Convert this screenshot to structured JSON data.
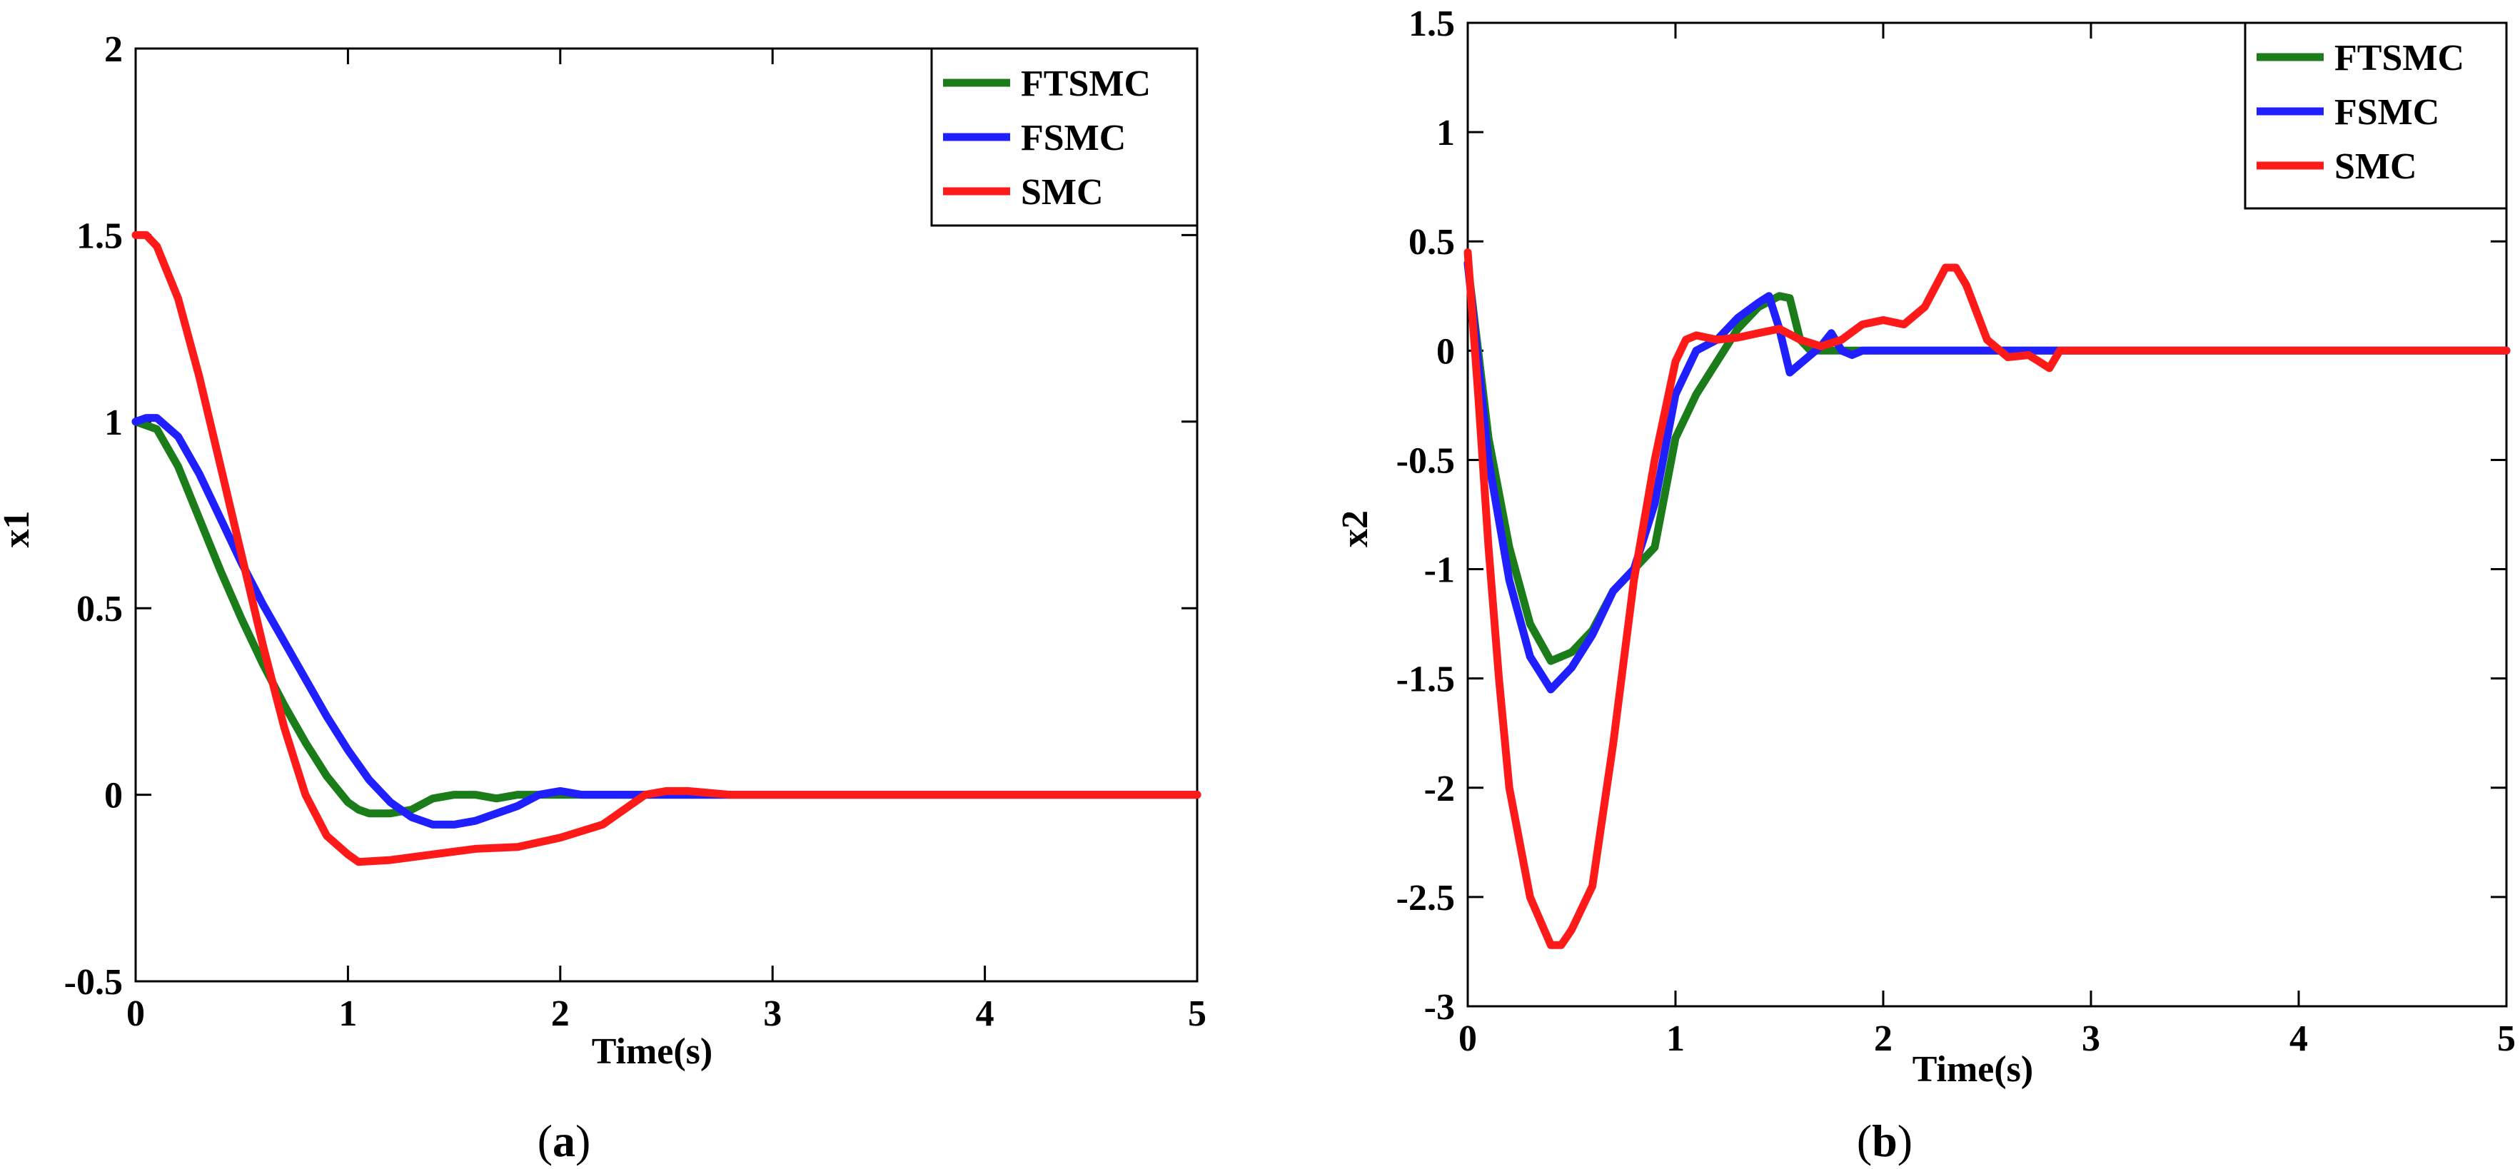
{
  "chart_data": [
    {
      "type": "line",
      "panel_label": "(a)",
      "panel_letter": "a",
      "xlabel": "Time(s)",
      "ylabel": "x1",
      "xlim": [
        0,
        5
      ],
      "ylim": [
        -0.5,
        2
      ],
      "xticks": [
        0,
        1,
        2,
        3,
        4,
        5
      ],
      "yticks": [
        -0.5,
        0,
        0.5,
        1,
        1.5,
        2
      ],
      "xtick_labels": [
        "0",
        "1",
        "2",
        "3",
        "4",
        "5"
      ],
      "ytick_labels": [
        "-0.5",
        "0",
        "0.5",
        "1",
        "1.5",
        "2"
      ],
      "grid": false,
      "legend_position": "top-right",
      "series": [
        {
          "name": "FTSMC",
          "color": "#1a7d1a",
          "points": [
            [
              0,
              1.0
            ],
            [
              0.1,
              0.98
            ],
            [
              0.2,
              0.88
            ],
            [
              0.3,
              0.74
            ],
            [
              0.4,
              0.6
            ],
            [
              0.5,
              0.47
            ],
            [
              0.6,
              0.35
            ],
            [
              0.7,
              0.24
            ],
            [
              0.8,
              0.14
            ],
            [
              0.9,
              0.05
            ],
            [
              1.0,
              -0.02
            ],
            [
              1.05,
              -0.04
            ],
            [
              1.1,
              -0.05
            ],
            [
              1.2,
              -0.05
            ],
            [
              1.3,
              -0.04
            ],
            [
              1.4,
              -0.01
            ],
            [
              1.5,
              0.0
            ],
            [
              1.6,
              0.0
            ],
            [
              1.7,
              -0.01
            ],
            [
              1.8,
              0.0
            ],
            [
              2.0,
              0.0
            ],
            [
              5.0,
              0.0
            ]
          ]
        },
        {
          "name": "FSMC",
          "color": "#1f1fff",
          "points": [
            [
              0,
              1.0
            ],
            [
              0.05,
              1.01
            ],
            [
              0.1,
              1.01
            ],
            [
              0.2,
              0.96
            ],
            [
              0.3,
              0.86
            ],
            [
              0.4,
              0.74
            ],
            [
              0.5,
              0.62
            ],
            [
              0.6,
              0.51
            ],
            [
              0.7,
              0.41
            ],
            [
              0.8,
              0.31
            ],
            [
              0.9,
              0.21
            ],
            [
              1.0,
              0.12
            ],
            [
              1.1,
              0.04
            ],
            [
              1.2,
              -0.02
            ],
            [
              1.3,
              -0.06
            ],
            [
              1.4,
              -0.08
            ],
            [
              1.5,
              -0.08
            ],
            [
              1.6,
              -0.07
            ],
            [
              1.7,
              -0.05
            ],
            [
              1.8,
              -0.03
            ],
            [
              1.9,
              0.0
            ],
            [
              2.0,
              0.01
            ],
            [
              2.1,
              0.0
            ],
            [
              2.2,
              0.0
            ],
            [
              5.0,
              0.0
            ]
          ]
        },
        {
          "name": "SMC",
          "color": "#ff1a1a",
          "points": [
            [
              0,
              1.5
            ],
            [
              0.05,
              1.5
            ],
            [
              0.1,
              1.47
            ],
            [
              0.2,
              1.33
            ],
            [
              0.3,
              1.12
            ],
            [
              0.4,
              0.88
            ],
            [
              0.5,
              0.64
            ],
            [
              0.6,
              0.4
            ],
            [
              0.7,
              0.18
            ],
            [
              0.8,
              0.0
            ],
            [
              0.9,
              -0.11
            ],
            [
              1.0,
              -0.16
            ],
            [
              1.05,
              -0.18
            ],
            [
              1.2,
              -0.175
            ],
            [
              1.4,
              -0.16
            ],
            [
              1.6,
              -0.145
            ],
            [
              1.8,
              -0.14
            ],
            [
              2.0,
              -0.115
            ],
            [
              2.2,
              -0.08
            ],
            [
              2.3,
              -0.04
            ],
            [
              2.4,
              0.0
            ],
            [
              2.5,
              0.01
            ],
            [
              2.6,
              0.01
            ],
            [
              2.7,
              0.005
            ],
            [
              2.8,
              0.0
            ],
            [
              5.0,
              0.0
            ]
          ]
        }
      ]
    },
    {
      "type": "line",
      "panel_label": "(b)",
      "panel_letter": "b",
      "xlabel": "Time(s)",
      "ylabel": "x2",
      "xlim": [
        0,
        5
      ],
      "ylim": [
        -3,
        1.5
      ],
      "xticks": [
        0,
        1,
        2,
        3,
        4,
        5
      ],
      "yticks": [
        -3,
        -2.5,
        -2,
        -1.5,
        -1,
        -0.5,
        0,
        0.5,
        1,
        1.5
      ],
      "xtick_labels": [
        "0",
        "1",
        "2",
        "3",
        "4",
        "5"
      ],
      "ytick_labels": [
        "-3",
        "-2.5",
        "-2",
        "-1.5",
        "-1",
        "-0.5",
        "0",
        "0.5",
        "1",
        "1.5"
      ],
      "grid": false,
      "legend_position": "top-right",
      "series": [
        {
          "name": "FTSMC",
          "color": "#1a7d1a",
          "points": [
            [
              0,
              0.4
            ],
            [
              0.05,
              0.0
            ],
            [
              0.1,
              -0.4
            ],
            [
              0.2,
              -0.9
            ],
            [
              0.3,
              -1.25
            ],
            [
              0.4,
              -1.42
            ],
            [
              0.5,
              -1.38
            ],
            [
              0.6,
              -1.28
            ],
            [
              0.7,
              -1.1
            ],
            [
              0.8,
              -1.0
            ],
            [
              0.9,
              -0.9
            ],
            [
              1.0,
              -0.4
            ],
            [
              1.1,
              -0.2
            ],
            [
              1.2,
              -0.05
            ],
            [
              1.3,
              0.1
            ],
            [
              1.4,
              0.2
            ],
            [
              1.5,
              0.25
            ],
            [
              1.55,
              0.24
            ],
            [
              1.6,
              0.05
            ],
            [
              1.65,
              0.0
            ],
            [
              1.8,
              0.0
            ],
            [
              5.0,
              0.0
            ]
          ]
        },
        {
          "name": "FSMC",
          "color": "#1f1fff",
          "points": [
            [
              0,
              0.4
            ],
            [
              0.05,
              -0.05
            ],
            [
              0.1,
              -0.5
            ],
            [
              0.2,
              -1.05
            ],
            [
              0.3,
              -1.4
            ],
            [
              0.4,
              -1.55
            ],
            [
              0.5,
              -1.45
            ],
            [
              0.6,
              -1.3
            ],
            [
              0.7,
              -1.1
            ],
            [
              0.8,
              -1.0
            ],
            [
              0.9,
              -0.7
            ],
            [
              1.0,
              -0.2
            ],
            [
              1.1,
              0.0
            ],
            [
              1.2,
              0.05
            ],
            [
              1.3,
              0.15
            ],
            [
              1.4,
              0.22
            ],
            [
              1.45,
              0.25
            ],
            [
              1.5,
              0.1
            ],
            [
              1.55,
              -0.1
            ],
            [
              1.6,
              -0.06
            ],
            [
              1.7,
              0.02
            ],
            [
              1.75,
              0.08
            ],
            [
              1.8,
              0.0
            ],
            [
              1.85,
              -0.02
            ],
            [
              1.9,
              0.0
            ],
            [
              5.0,
              0.0
            ]
          ]
        },
        {
          "name": "SMC",
          "color": "#ff1a1a",
          "points": [
            [
              0,
              0.45
            ],
            [
              0.05,
              -0.2
            ],
            [
              0.1,
              -0.9
            ],
            [
              0.15,
              -1.5
            ],
            [
              0.2,
              -2.0
            ],
            [
              0.3,
              -2.5
            ],
            [
              0.4,
              -2.72
            ],
            [
              0.45,
              -2.72
            ],
            [
              0.5,
              -2.65
            ],
            [
              0.6,
              -2.45
            ],
            [
              0.7,
              -1.8
            ],
            [
              0.8,
              -1.05
            ],
            [
              0.9,
              -0.5
            ],
            [
              1.0,
              -0.05
            ],
            [
              1.05,
              0.05
            ],
            [
              1.1,
              0.07
            ],
            [
              1.2,
              0.05
            ],
            [
              1.3,
              0.06
            ],
            [
              1.4,
              0.08
            ],
            [
              1.5,
              0.1
            ],
            [
              1.6,
              0.05
            ],
            [
              1.7,
              0.02
            ],
            [
              1.8,
              0.05
            ],
            [
              1.9,
              0.12
            ],
            [
              2.0,
              0.14
            ],
            [
              2.1,
              0.12
            ],
            [
              2.2,
              0.2
            ],
            [
              2.3,
              0.38
            ],
            [
              2.35,
              0.38
            ],
            [
              2.4,
              0.3
            ],
            [
              2.5,
              0.05
            ],
            [
              2.6,
              -0.03
            ],
            [
              2.7,
              -0.02
            ],
            [
              2.75,
              -0.05
            ],
            [
              2.8,
              -0.08
            ],
            [
              2.85,
              0.0
            ],
            [
              5.0,
              0.0
            ]
          ]
        }
      ]
    }
  ]
}
